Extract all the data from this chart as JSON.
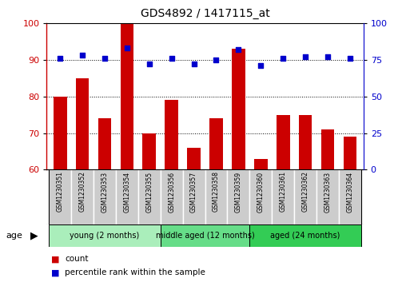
{
  "title": "GDS4892 / 1417115_at",
  "samples": [
    "GSM1230351",
    "GSM1230352",
    "GSM1230353",
    "GSM1230354",
    "GSM1230355",
    "GSM1230356",
    "GSM1230357",
    "GSM1230358",
    "GSM1230359",
    "GSM1230360",
    "GSM1230361",
    "GSM1230362",
    "GSM1230363",
    "GSM1230364"
  ],
  "bar_values": [
    80,
    85,
    74,
    100,
    70,
    79,
    66,
    74,
    93,
    63,
    75,
    75,
    71,
    69
  ],
  "percentile_values": [
    76,
    78,
    76,
    83,
    72,
    76,
    72,
    75,
    82,
    71,
    76,
    77,
    77,
    76
  ],
  "ylim_left": [
    60,
    100
  ],
  "ylim_right": [
    0,
    100
  ],
  "yticks_left": [
    60,
    70,
    80,
    90,
    100
  ],
  "yticks_right": [
    0,
    25,
    50,
    75,
    100
  ],
  "bar_color": "#CC0000",
  "dot_color": "#0000CC",
  "grid_color": "#000000",
  "bg_color": "#FFFFFF",
  "groups": [
    {
      "label": "young (2 months)",
      "start": 0,
      "end": 5,
      "color": "#AAEEBB"
    },
    {
      "label": "middle aged (12 months)",
      "start": 5,
      "end": 9,
      "color": "#66DD88"
    },
    {
      "label": "aged (24 months)",
      "start": 9,
      "end": 14,
      "color": "#33CC55"
    }
  ],
  "age_label": "age",
  "label_bg": "#CCCCCC",
  "label_border": "#FFFFFF"
}
